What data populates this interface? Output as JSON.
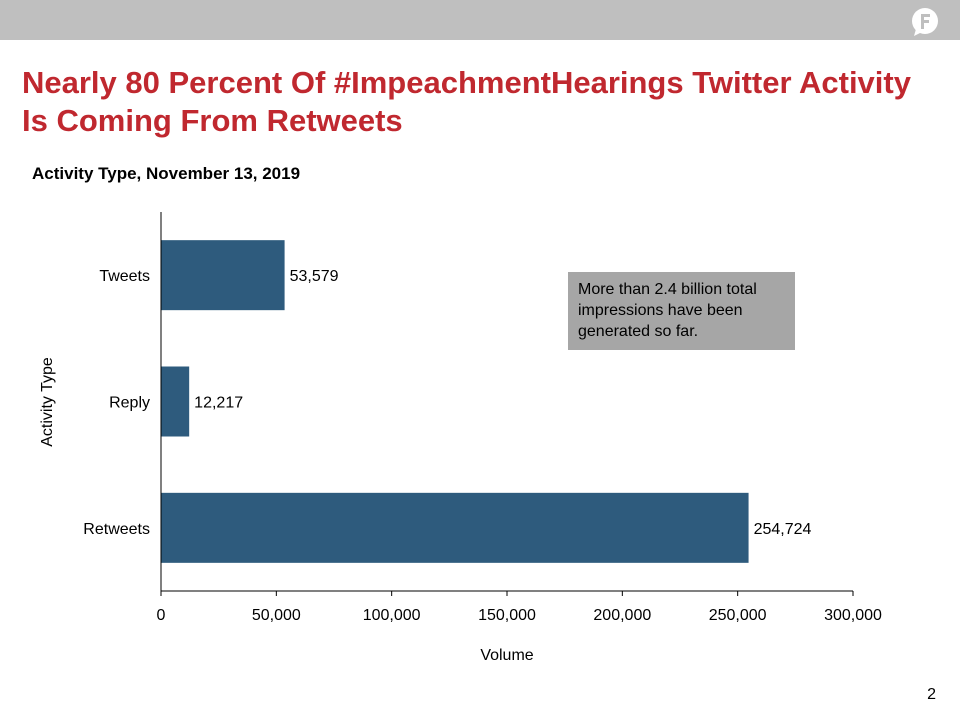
{
  "slide": {
    "title": "Nearly 80 Percent Of #ImpeachmentHearings Twitter Activity Is Coming From Retweets",
    "subtitle": "Activity Type, November 13, 2019",
    "callout": "More than 2.4 billion total impressions have been generated so far.",
    "page_number": "2",
    "logo_icon": "speech-bubble-f-logo-icon"
  },
  "colors": {
    "title": "#c0282f",
    "bar": "#2e5b7d",
    "topbar": "#bfbfbf",
    "callout_bg": "#a6a6a6"
  },
  "chart_data": {
    "type": "bar",
    "orientation": "horizontal",
    "categories": [
      "Tweets",
      "Reply",
      "Retweets"
    ],
    "values": [
      53579,
      12217,
      254724
    ],
    "value_labels": [
      "53,579",
      "12,217",
      "254,724"
    ],
    "xlabel": "Volume",
    "ylabel": "Activity Type",
    "xlim": [
      0,
      300000
    ],
    "xticks": [
      0,
      50000,
      100000,
      150000,
      200000,
      250000,
      300000
    ],
    "xtick_labels": [
      "0",
      "50,000",
      "100,000",
      "150,000",
      "200,000",
      "250,000",
      "300,000"
    ],
    "grid": false,
    "legend": "none"
  }
}
